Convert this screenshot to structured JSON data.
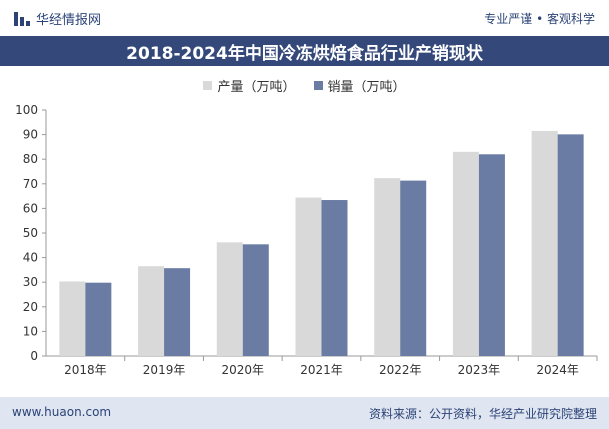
{
  "header": {
    "brand": "华经情报网",
    "tagline": "专业严谨 • 客观科学",
    "title": "2018-2024年中国冷冻烘焙食品行业产销现状"
  },
  "colors": {
    "header_bg": "#34497a",
    "production": "#d9d9d9",
    "sales": "#6a7ca3"
  },
  "chart_data": {
    "type": "bar",
    "categories": [
      "2018年",
      "2019年",
      "2020年",
      "2021年",
      "2022年",
      "2023年",
      "2024年"
    ],
    "series": [
      {
        "name": "产量（万吨）",
        "values": [
          30.3,
          36.5,
          46.2,
          64.4,
          72.3,
          83.0,
          91.5
        ]
      },
      {
        "name": "销量（万吨）",
        "values": [
          29.8,
          35.7,
          45.4,
          63.4,
          71.3,
          82.0,
          90.1
        ]
      }
    ],
    "ylim": [
      0,
      100
    ],
    "yticks": [
      0,
      10,
      20,
      30,
      40,
      50,
      60,
      70,
      80,
      90,
      100
    ],
    "legend": "top-center",
    "grid": false
  },
  "footer": {
    "website": "www.huaon.com",
    "source": "资料来源：公开资料，华经产业研究院整理"
  }
}
